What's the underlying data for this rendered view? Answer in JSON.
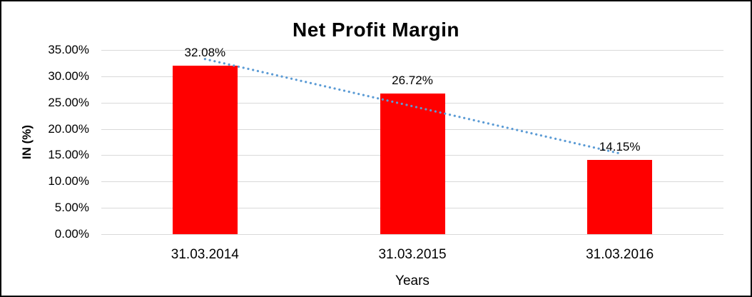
{
  "frame": {
    "border_color": "#000000",
    "background": "#ffffff"
  },
  "chart_data": {
    "type": "bar",
    "title": "Net Profit Margin",
    "xlabel": "Years",
    "ylabel": "IN (%)",
    "categories": [
      "31.03.2014",
      "31.03.2015",
      "31.03.2016"
    ],
    "values": [
      32.08,
      26.72,
      14.15
    ],
    "data_labels": [
      "32.08%",
      "26.72%",
      "14.15%"
    ],
    "ylim": [
      0,
      35
    ],
    "ytick_step": 5,
    "ytick_labels": [
      "0.00%",
      "5.00%",
      "10.00%",
      "15.00%",
      "20.00%",
      "25.00%",
      "30.00%",
      "35.00%"
    ],
    "grid": true,
    "legend": "none",
    "bar_color": "#ff0000",
    "gridline_color": "#d9d9d9",
    "trendline": {
      "type": "linear",
      "style": "dotted",
      "color": "#5b9bd5"
    }
  }
}
